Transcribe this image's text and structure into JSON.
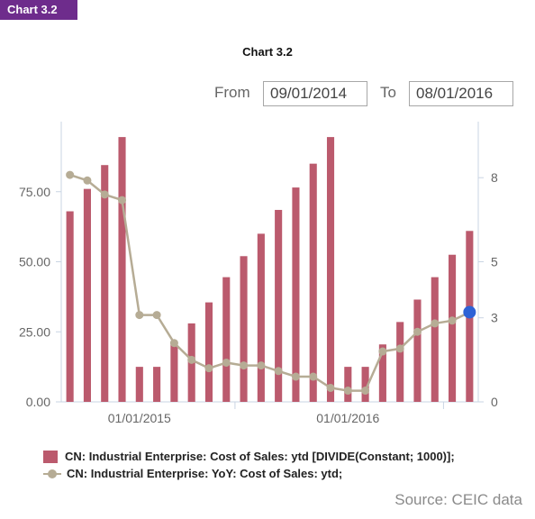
{
  "header": {
    "tag_label": "Chart 3.2",
    "chart_title": "Chart 3.2",
    "from_label": "From",
    "from_date": "09/01/2014",
    "to_label": "To",
    "to_date": "08/01/2016"
  },
  "source": "Source: CEIC data",
  "legend": {
    "bar_series": "CN: Industrial Enterprise: Cost of Sales: ytd [DIVIDE(Constant; 1000)];",
    "line_series": "CN: Industrial Enterprise: YoY: Cost of Sales: ytd;"
  },
  "colors": {
    "bar": "#bb5a6d",
    "line": "#b6ac95",
    "highlight_point": "#2e62d6",
    "axis": "#c9d4e3"
  },
  "chart_data": {
    "type": "bar",
    "title": "Chart 3.2",
    "categories": [
      "2014-09",
      "2014-10",
      "2014-11",
      "2014-12",
      "2015-01",
      "2015-02",
      "2015-03",
      "2015-04",
      "2015-05",
      "2015-06",
      "2015-07",
      "2015-08",
      "2015-09",
      "2015-10",
      "2015-11",
      "2015-12",
      "2016-01",
      "2016-02",
      "2016-03",
      "2016-04",
      "2016-05",
      "2016-06",
      "2016-07",
      "2016-08"
    ],
    "x_tick_labels": [
      "01/01/2015",
      "01/01/2016"
    ],
    "left_axis": {
      "ticks": [
        "0.00",
        "25.00",
        "50.00",
        "75.00"
      ],
      "ylim": [
        0,
        100
      ]
    },
    "right_axis": {
      "ticks": [
        "0",
        "3",
        "5",
        "8"
      ],
      "ylim": [
        0,
        10
      ]
    },
    "series": [
      {
        "name": "CN: Industrial Enterprise: Cost of Sales: ytd [DIVIDE(Constant; 1000)];",
        "type": "bar",
        "axis": "left",
        "values": [
          68,
          76,
          84.5,
          94.5,
          12.5,
          12.5,
          20.5,
          28,
          35.5,
          44.5,
          52,
          60,
          68.5,
          76.5,
          85,
          94.5,
          12.5,
          12.5,
          20.5,
          28.5,
          36.5,
          44.5,
          52.5,
          61
        ]
      },
      {
        "name": "CN: Industrial Enterprise: YoY: Cost of Sales: ytd;",
        "type": "line",
        "axis": "right",
        "values": [
          8.1,
          7.9,
          7.4,
          7.2,
          3.1,
          3.1,
          2.1,
          1.5,
          1.2,
          1.4,
          1.3,
          1.3,
          1.1,
          0.9,
          0.9,
          0.5,
          0.4,
          0.4,
          1.8,
          1.9,
          2.5,
          2.8,
          2.9,
          3.2
        ]
      }
    ],
    "grid": false,
    "legend_position": "bottom-left"
  }
}
